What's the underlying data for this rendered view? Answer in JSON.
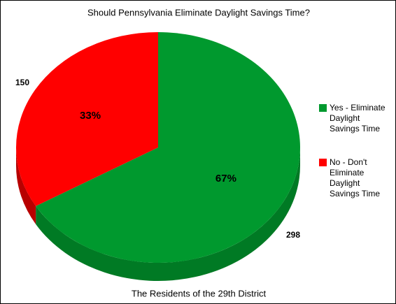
{
  "chart_data": {
    "type": "pie3d",
    "title": "Should Pennsylvania Eliminate Daylight Savings Time?",
    "subtitle": "The Residents of the 29th District",
    "categories": [
      "Yes - Eliminate Daylight Savings Time",
      "No - Don't Eliminate Daylight Savings Time"
    ],
    "values": [
      298,
      150
    ],
    "percent_labels": [
      "67%",
      "33%"
    ],
    "colors": [
      "#00992e",
      "#ff0000"
    ],
    "side_colors": [
      "#007a24",
      "#b80000"
    ],
    "legend": "right"
  }
}
